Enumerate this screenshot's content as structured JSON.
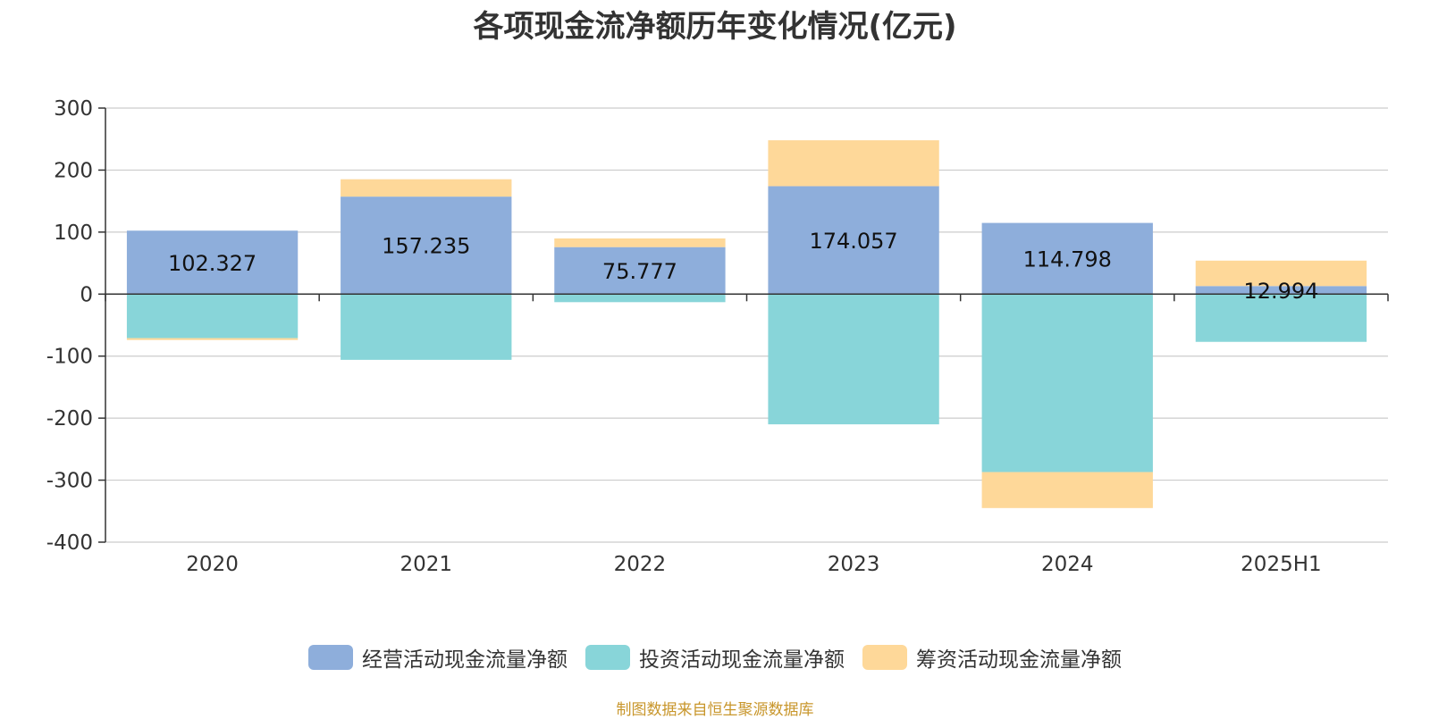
{
  "chart_data": {
    "type": "bar",
    "stacked": true,
    "title": "各项现金流净额历年变化情况(亿元)",
    "categories": [
      "2020",
      "2021",
      "2022",
      "2023",
      "2024",
      "2025H1"
    ],
    "ylim": [
      -400,
      300
    ],
    "yticks": [
      300,
      200,
      100,
      0,
      -100,
      -200,
      -300,
      -400
    ],
    "grid": true,
    "legend_position": "bottom",
    "series": [
      {
        "name": "经营活动现金流量净额",
        "color": "#8eaedb",
        "values": [
          102.327,
          157.235,
          75.777,
          174.057,
          114.798,
          12.994
        ],
        "labels": [
          "102.327",
          "157.235",
          "75.777",
          "174.057",
          "114.798",
          "12.994"
        ]
      },
      {
        "name": "投资活动现金流量净额",
        "color": "#88d5d9",
        "values": [
          -71,
          -106,
          -13,
          -210,
          -287,
          -77
        ]
      },
      {
        "name": "筹资活动现金流量净额",
        "color": "#fed899",
        "values": [
          -3,
          28,
          14,
          74,
          -58,
          41
        ]
      }
    ],
    "source": "制图数据来自恒生聚源数据库"
  }
}
